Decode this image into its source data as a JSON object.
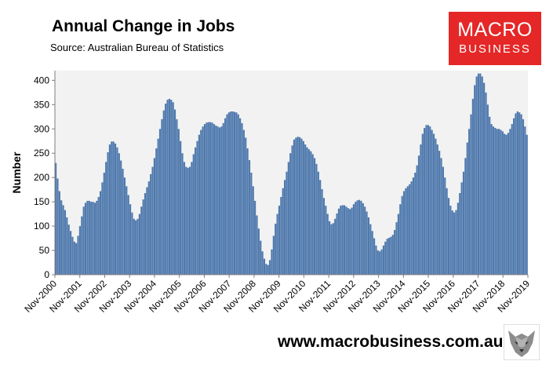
{
  "header": {
    "title": "Annual Change in Jobs",
    "subtitle": "Source: Australian Bureau of Statistics"
  },
  "logo": {
    "line1": "MACRO",
    "line2": "BUSINESS"
  },
  "footer": {
    "website": "www.macrobusiness.com.au"
  },
  "chart_data": {
    "type": "bar",
    "title": "Annual Change in Jobs",
    "subtitle": "Source: Australian Bureau of Statistics",
    "xlabel": "",
    "ylabel": "Number",
    "ylim": [
      0,
      420
    ],
    "yticks": [
      0,
      50,
      100,
      150,
      200,
      250,
      300,
      350,
      400
    ],
    "grid": false,
    "bar_color": "#4f79ad",
    "plot_background": "#f2f2f2",
    "x_tick_labels": [
      "Nov-2000",
      "Nov-2001",
      "Nov-2002",
      "Nov-2003",
      "Nov-2004",
      "Nov-2005",
      "Nov-2006",
      "Nov-2007",
      "Nov-2008",
      "Nov-2009",
      "Nov-2010",
      "Nov-2011",
      "Nov-2012",
      "Nov-2013",
      "Nov-2014",
      "Nov-2015",
      "Nov-2016",
      "Nov-2017",
      "Nov-2018",
      "Nov-2019"
    ],
    "categories_note": "monthly, Nov-2000 to Nov-2019",
    "values": [
      230,
      198,
      172,
      153,
      143,
      133,
      118,
      103,
      90,
      78,
      68,
      65,
      80,
      100,
      120,
      140,
      148,
      152,
      152,
      150,
      150,
      148,
      152,
      160,
      172,
      190,
      210,
      232,
      252,
      268,
      274,
      274,
      270,
      262,
      250,
      235,
      218,
      200,
      182,
      164,
      145,
      128,
      115,
      112,
      115,
      125,
      140,
      155,
      168,
      180,
      192,
      207,
      222,
      240,
      260,
      280,
      300,
      320,
      338,
      352,
      360,
      362,
      360,
      355,
      340,
      320,
      300,
      275,
      250,
      232,
      222,
      220,
      222,
      232,
      248,
      262,
      275,
      288,
      298,
      305,
      310,
      313,
      314,
      314,
      313,
      310,
      307,
      305,
      303,
      305,
      312,
      322,
      330,
      334,
      336,
      336,
      335,
      334,
      330,
      322,
      312,
      298,
      282,
      260,
      236,
      210,
      182,
      152,
      122,
      95,
      70,
      48,
      33,
      22,
      20,
      30,
      52,
      80,
      105,
      125,
      142,
      160,
      178,
      195,
      212,
      232,
      250,
      266,
      278,
      282,
      284,
      283,
      280,
      275,
      268,
      262,
      258,
      254,
      248,
      240,
      228,
      212,
      195,
      176,
      158,
      142,
      125,
      110,
      104,
      106,
      115,
      126,
      136,
      142,
      143,
      143,
      140,
      137,
      135,
      138,
      145,
      150,
      153,
      154,
      152,
      147,
      140,
      130,
      118,
      104,
      90,
      75,
      60,
      50,
      48,
      52,
      60,
      68,
      74,
      76,
      78,
      82,
      92,
      108,
      125,
      145,
      162,
      172,
      178,
      182,
      186,
      192,
      200,
      210,
      225,
      245,
      268,
      290,
      302,
      308,
      308,
      305,
      298,
      290,
      280,
      268,
      255,
      240,
      222,
      200,
      178,
      158,
      142,
      132,
      128,
      133,
      148,
      168,
      190,
      212,
      240,
      272,
      300,
      330,
      362,
      390,
      408,
      414,
      414,
      408,
      395,
      375,
      350,
      325,
      310,
      305,
      302,
      300,
      300,
      298,
      295,
      290,
      288,
      292,
      300,
      310,
      322,
      332,
      336,
      334,
      330,
      320,
      305,
      288
    ]
  }
}
